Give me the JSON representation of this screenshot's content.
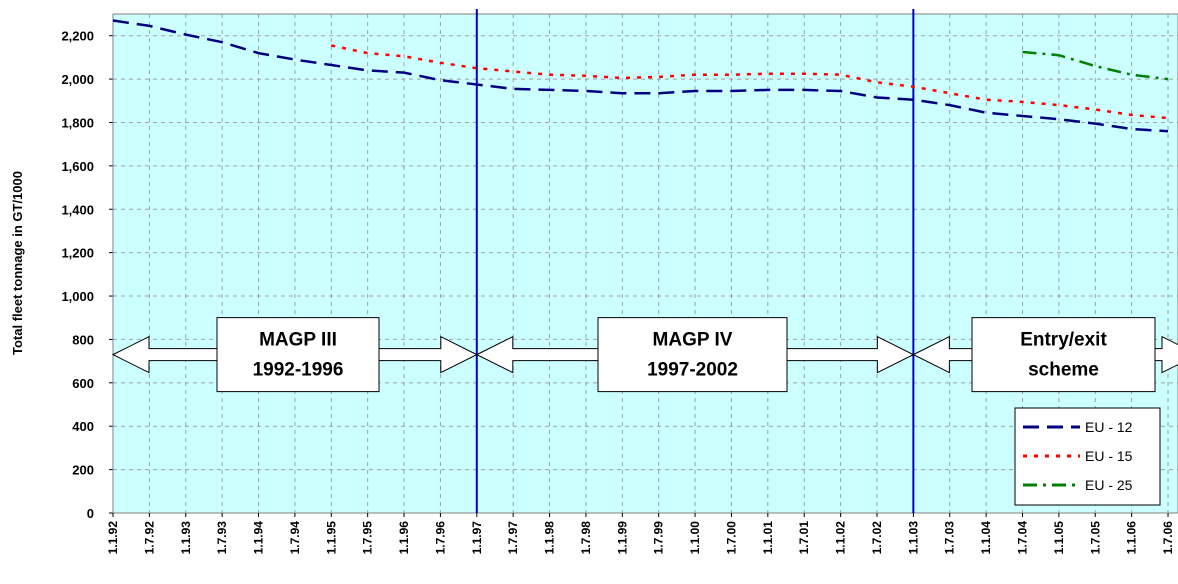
{
  "chart_data": {
    "type": "line",
    "y_label": "Total fleet tonnage in GT/1000",
    "categories": [
      "1.1.92",
      "1.7.92",
      "1.1.93",
      "1.7.93",
      "1.1.94",
      "1.7.94",
      "1.1.95",
      "1.7.95",
      "1.1.96",
      "1.7.96",
      "1.1.97",
      "1.7.97",
      "1.1.98",
      "1.7.98",
      "1.1.99",
      "1.7.99",
      "1.1.00",
      "1.7.00",
      "1.1.01",
      "1.7.01",
      "1.1.02",
      "1.7.02",
      "1.1.03",
      "1.7.03",
      "1.1.04",
      "1.7.04",
      "1.1.05",
      "1.7.05",
      "1.1.06",
      "1.7.06"
    ],
    "series": [
      {
        "name": "EU - 12",
        "color": "#000080",
        "values": [
          2270,
          2245,
          2205,
          2170,
          2120,
          2090,
          2065,
          2040,
          2030,
          1995,
          1975,
          1955,
          1950,
          1945,
          1935,
          1935,
          1945,
          1945,
          1950,
          1950,
          1945,
          1915,
          1905,
          1880,
          1845,
          1830,
          1815,
          1795,
          1770,
          1760
        ]
      },
      {
        "name": "EU - 15",
        "color": "#ff0000",
        "values": [
          null,
          null,
          null,
          null,
          null,
          null,
          2155,
          2120,
          2105,
          2075,
          2050,
          2035,
          2020,
          2015,
          2005,
          2010,
          2020,
          2020,
          2025,
          2025,
          2020,
          1985,
          1965,
          1935,
          1905,
          1895,
          1880,
          1860,
          1835,
          1820
        ]
      },
      {
        "name": "EU - 25",
        "color": "#008000",
        "values": [
          null,
          null,
          null,
          null,
          null,
          null,
          null,
          null,
          null,
          null,
          null,
          null,
          null,
          null,
          null,
          null,
          null,
          null,
          null,
          null,
          null,
          null,
          null,
          null,
          null,
          2125,
          2110,
          2060,
          2020,
          2000
        ]
      }
    ],
    "ylim": [
      0,
      2300
    ],
    "yticks": [
      0,
      200,
      400,
      600,
      800,
      {
        "value": 1000,
        "label": "1,000"
      },
      {
        "value": 1200,
        "label": "1,200"
      },
      {
        "value": 1400,
        "label": "1,400"
      },
      {
        "value": 1600,
        "label": "1,600"
      },
      {
        "value": 1800,
        "label": "1,800"
      },
      {
        "value": 2000,
        "label": "2,000"
      },
      {
        "value": 2200,
        "label": "2,200"
      }
    ],
    "grid": true,
    "plot_background": "#ccffff",
    "legend_position": "lower right",
    "annotations": [
      {
        "lines": [
          "MAGP III",
          "1992-1996"
        ]
      },
      {
        "lines": [
          "MAGP IV",
          "1997-2002"
        ]
      },
      {
        "lines": [
          "Entry/exit",
          "scheme"
        ]
      }
    ]
  }
}
